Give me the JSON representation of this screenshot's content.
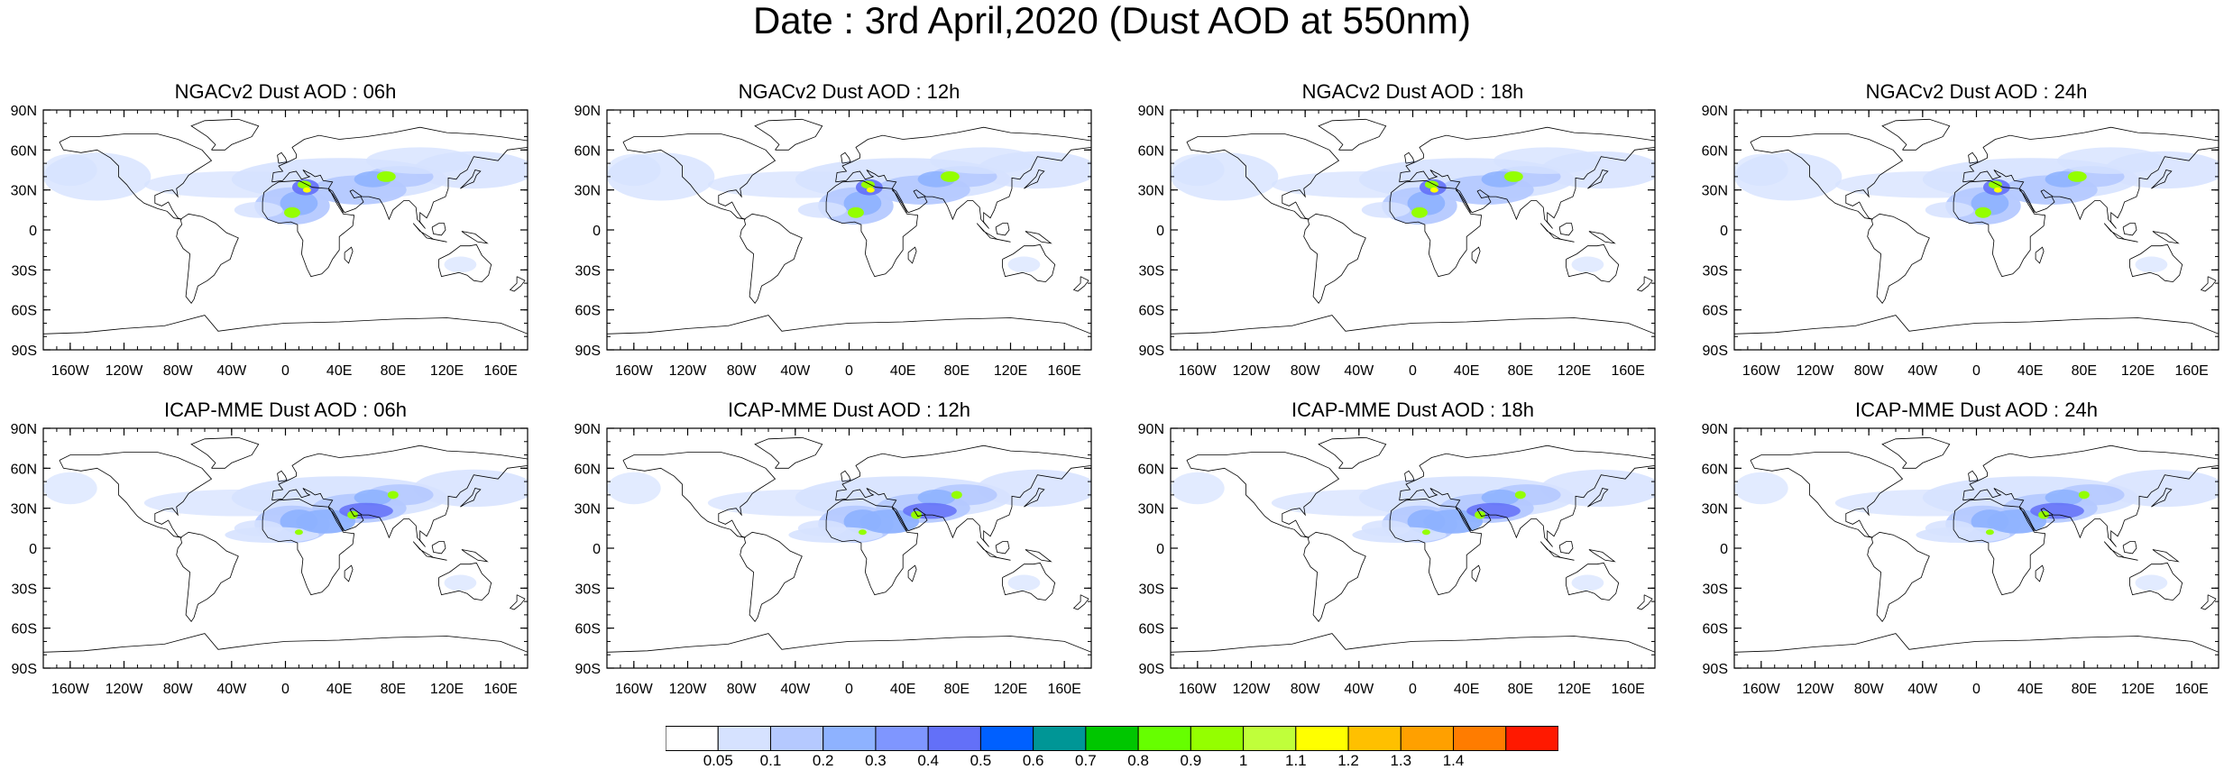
{
  "title": "Date : 3rd April,2020 (Dust AOD at 550nm)",
  "panels": [
    {
      "title": "NGACv2 Dust AOD : 06h",
      "model": "NGACv2"
    },
    {
      "title": "NGACv2 Dust AOD : 12h",
      "model": "NGACv2"
    },
    {
      "title": "NGACv2 Dust AOD : 18h",
      "model": "NGACv2"
    },
    {
      "title": "NGACv2 Dust AOD : 24h",
      "model": "NGACv2"
    },
    {
      "title": "ICAP-MME Dust AOD : 06h",
      "model": "ICAP-MME"
    },
    {
      "title": "ICAP-MME Dust AOD : 12h",
      "model": "ICAP-MME"
    },
    {
      "title": "ICAP-MME Dust AOD : 18h",
      "model": "ICAP-MME"
    },
    {
      "title": "ICAP-MME Dust AOD : 24h",
      "model": "ICAP-MME"
    }
  ],
  "axes": {
    "lat_labels": [
      "90N",
      "60N",
      "30N",
      "0",
      "30S",
      "60S",
      "90S"
    ],
    "lat_values": [
      90,
      60,
      30,
      0,
      -30,
      -60,
      -90
    ],
    "lon_labels": [
      "160W",
      "120W",
      "80W",
      "40W",
      "0",
      "40E",
      "80E",
      "120E",
      "160E"
    ],
    "lon_values": [
      -160,
      -120,
      -80,
      -40,
      0,
      40,
      80,
      120,
      160
    ],
    "lon_range": [
      -180,
      180
    ],
    "lat_range": [
      -90,
      90
    ]
  },
  "colorbar": {
    "labels": [
      "0.05",
      "0.1",
      "0.2",
      "0.3",
      "0.4",
      "0.5",
      "0.6",
      "0.7",
      "0.8",
      "0.9",
      "1",
      "1.1",
      "1.2",
      "1.3",
      "1.4"
    ],
    "colors": [
      "#ffffff",
      "#d6e2ff",
      "#b5c9ff",
      "#8eb2ff",
      "#7f96ff",
      "#6370f8",
      "#0060ff",
      "#009696",
      "#00c600",
      "#66ff00",
      "#94ff00",
      "#c0ff3a",
      "#ffff00",
      "#ffc000",
      "#ffa000",
      "#ff7c00",
      "#ff1900"
    ]
  },
  "plume_colors": {
    "light": "#d6e2ff",
    "medium": "#b5c9ff",
    "blue": "#8eb2ff",
    "deep": "#6370f8",
    "green": "#94ff00",
    "yellow": "#ffff00"
  }
}
